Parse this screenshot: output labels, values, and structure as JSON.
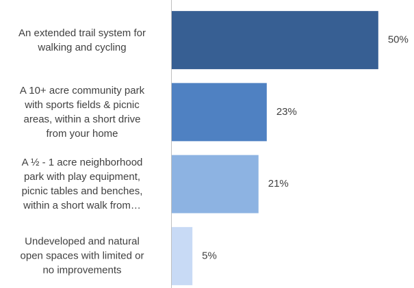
{
  "chart_data": {
    "type": "bar",
    "orientation": "horizontal",
    "categories": [
      "An extended trail system for\nwalking and cycling",
      "A 10+ acre community park\nwith sports fields & picnic\nareas, within a short drive\nfrom your home",
      "A ½ - 1 acre neighborhood\npark with play equipment,\npicnic tables and benches,\nwithin a short walk from…",
      "Undeveloped and natural\nopen spaces with limited or\nno improvements"
    ],
    "values": [
      50,
      23,
      21,
      5
    ],
    "value_labels": [
      "50%",
      "23%",
      "21%",
      "5%"
    ],
    "colors": [
      "#375f93",
      "#4f81c2",
      "#8db3e2",
      "#c8daf5"
    ],
    "xlim": [
      0,
      55
    ]
  }
}
